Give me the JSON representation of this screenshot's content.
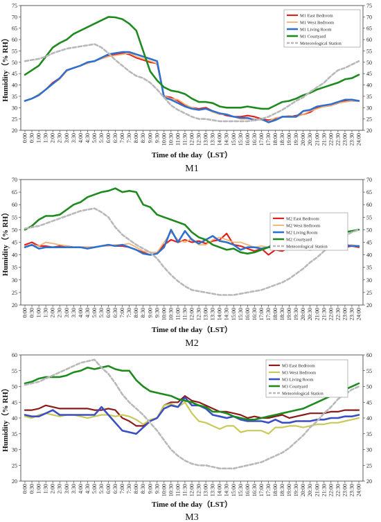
{
  "chart_data": [
    {
      "type": "line",
      "title": "M1",
      "xlabel": "Time of the day（LST）",
      "ylabel": "Humidity（% RH）",
      "ylim": [
        20,
        75
      ],
      "yticks": [
        20,
        25,
        30,
        35,
        40,
        45,
        50,
        55,
        60,
        65,
        70,
        75
      ],
      "x": [
        "0:00",
        "0:30",
        "1:00",
        "1:30",
        "2:00",
        "2:30",
        "3:00",
        "3:30",
        "4:00",
        "4:30",
        "5:00",
        "5:30",
        "6:00",
        "6:30",
        "7:00",
        "7:30",
        "8:00",
        "8:30",
        "9:00",
        "9:30",
        "10:00",
        "10:30",
        "11:00",
        "11:30",
        "12:00",
        "12:30",
        "13:00",
        "13:30",
        "14:00",
        "14:30",
        "15:00",
        "15:30",
        "16:00",
        "16:30",
        "17:00",
        "17:30",
        "18:00",
        "18:30",
        "19:00",
        "19:30",
        "20:00",
        "20:30",
        "21:00",
        "21:30",
        "22:00",
        "22:30",
        "23:00",
        "23:30",
        "24:00"
      ],
      "legend_position": "top-right",
      "series": [
        {
          "name": "M1 East Bedroom",
          "color": "#e0201b",
          "width": 2.2,
          "dash": "",
          "values": [
            33,
            34,
            35.5,
            38,
            41,
            43,
            46.5,
            47.5,
            48.5,
            50,
            50.5,
            52,
            53,
            53.5,
            54,
            53.5,
            52,
            51,
            50,
            49.5,
            35,
            34.5,
            33,
            31,
            30,
            29.5,
            30,
            28.5,
            27.5,
            26.5,
            26,
            26,
            26.5,
            26,
            25,
            24.5,
            25,
            26,
            26,
            26.5,
            27,
            28,
            30,
            30.5,
            31,
            32,
            33,
            33,
            33
          ]
        },
        {
          "name": "M1 West Bedroom",
          "color": "#f2b272",
          "width": 1.8,
          "dash": "",
          "values": [
            33,
            34,
            36,
            38,
            40.5,
            42.5,
            46,
            47.5,
            48.5,
            49.5,
            50.5,
            51.5,
            52.5,
            53,
            53.5,
            54,
            52.5,
            51.5,
            50.5,
            49.5,
            35,
            34,
            33.5,
            31.5,
            30,
            29,
            29.5,
            28,
            27,
            27,
            26,
            25,
            25,
            25,
            24.5,
            24,
            25.5,
            26,
            26.5,
            26,
            27,
            28.5,
            29.5,
            30.5,
            31,
            32,
            32.5,
            33,
            33
          ]
        },
        {
          "name": "M1 Living Room",
          "color": "#2f6fce",
          "width": 2.6,
          "dash": "",
          "values": [
            33,
            34,
            35.5,
            38,
            40.5,
            43,
            46.5,
            47.5,
            48.5,
            50,
            50.5,
            52,
            53.5,
            54,
            54.5,
            54.5,
            53.5,
            52.5,
            51.5,
            50.5,
            34.5,
            33.5,
            32,
            30.5,
            29.5,
            29,
            29.5,
            28.5,
            27.5,
            27,
            26,
            25.5,
            25.5,
            24.5,
            25,
            23.5,
            24.5,
            26,
            26,
            26,
            28.5,
            29,
            30.5,
            31,
            31.5,
            32.5,
            33.5,
            33.5,
            33
          ]
        },
        {
          "name": "M1 Courtyard",
          "color": "#1d8a1d",
          "width": 2.6,
          "dash": "",
          "values": [
            44.5,
            46.5,
            48.5,
            52.5,
            56.5,
            58.5,
            60,
            62.5,
            64,
            65.5,
            67,
            68.5,
            70,
            69.8,
            69,
            67,
            64,
            55,
            46,
            42,
            39,
            37.5,
            37,
            36,
            34,
            32.5,
            32.5,
            32,
            30.5,
            30,
            30,
            30,
            30.5,
            30,
            29.5,
            29.5,
            31,
            32.5,
            33,
            34,
            35.5,
            36.5,
            38,
            39,
            40,
            41,
            42.5,
            43,
            44.5
          ]
        },
        {
          "name": "Meteorological Station",
          "color": "#b8b8b8",
          "width": 2.6,
          "dash": "5,3",
          "values": [
            50.5,
            51,
            51.5,
            52.5,
            54,
            55,
            56,
            56.5,
            57,
            57.5,
            58,
            56.5,
            54,
            51,
            48.5,
            46,
            44,
            43,
            41,
            38,
            34.5,
            31,
            29,
            27.5,
            26,
            25,
            25,
            24.5,
            24,
            24,
            24,
            24,
            24,
            24.5,
            25,
            26,
            27.5,
            29,
            31,
            33,
            34.5,
            37,
            39,
            41,
            44,
            46.5,
            47.5,
            49,
            50.5
          ]
        }
      ]
    },
    {
      "type": "line",
      "title": "M2",
      "xlabel": "Time of the day（LST）",
      "ylabel": "Humidity（% RH）",
      "ylim": [
        20,
        70
      ],
      "yticks": [
        20,
        25,
        30,
        35,
        40,
        45,
        50,
        55,
        60,
        65,
        70
      ],
      "x": [
        "0:00",
        "0:30",
        "1:00",
        "1:30",
        "2:00",
        "2:30",
        "3:00",
        "3:30",
        "4:00",
        "4:30",
        "5:00",
        "5:30",
        "6:00",
        "6:30",
        "7:00",
        "7:30",
        "8:00",
        "8:30",
        "9:00",
        "9:30",
        "10:00",
        "10:30",
        "11:00",
        "11:30",
        "12:00",
        "12:30",
        "13:00",
        "13:30",
        "14:00",
        "14:30",
        "15:00",
        "15:30",
        "16:00",
        "16:30",
        "17:00",
        "17:30",
        "18:00",
        "18:30",
        "19:00",
        "19:30",
        "20:00",
        "20:30",
        "21:00",
        "21:30",
        "22:00",
        "22:30",
        "23:00",
        "23:30",
        "24:00"
      ],
      "legend_position": "top-right",
      "series": [
        {
          "name": "M2 East Bedroom",
          "color": "#e0201b",
          "width": 2.2,
          "dash": "",
          "values": [
            44,
            45,
            43.5,
            43.5,
            43,
            43.5,
            43.5,
            43,
            43,
            43,
            43,
            43.5,
            44,
            43.5,
            43.5,
            43,
            42,
            41,
            40,
            40.5,
            44,
            46,
            45,
            46,
            45,
            45.5,
            44.5,
            45.5,
            46,
            48.5,
            44,
            43.5,
            42.5,
            41.5,
            42.5,
            40,
            42,
            41.5,
            43,
            43,
            42.5,
            42,
            42.5,
            45.5,
            42.5,
            43,
            43,
            43.5,
            43
          ]
        },
        {
          "name": "M2 West Bedroom",
          "color": "#f2b272",
          "width": 1.8,
          "dash": "",
          "values": [
            43.5,
            44,
            43.5,
            45,
            44.5,
            44,
            43.5,
            43,
            43,
            43,
            43,
            43.5,
            43.5,
            44,
            44,
            44.5,
            43,
            41.5,
            41,
            41,
            45,
            49,
            46,
            45,
            46.5,
            44,
            44,
            46,
            47,
            46,
            45,
            45,
            44,
            43,
            43.5,
            43,
            44,
            42.5,
            43,
            43,
            44,
            44,
            44,
            43,
            43.5,
            43.5,
            43.5,
            44,
            43.5
          ]
        },
        {
          "name": "M2 Living Room",
          "color": "#2f6fce",
          "width": 2.6,
          "dash": "",
          "values": [
            43,
            44,
            42.5,
            43,
            43,
            43,
            43,
            43,
            43,
            42.5,
            43,
            43.5,
            44,
            43.5,
            44,
            43,
            42,
            40.5,
            40,
            40.5,
            43,
            50,
            45,
            49.5,
            46,
            44.5,
            46,
            47.5,
            45.5,
            45,
            44,
            42,
            43,
            43,
            42.5,
            43,
            45,
            43,
            43.5,
            44,
            46,
            45,
            44,
            44.5,
            43,
            44,
            44,
            43.5,
            43.5
          ]
        },
        {
          "name": "M2 Courtyard",
          "color": "#1d8a1d",
          "width": 2.6,
          "dash": "",
          "values": [
            50,
            51.5,
            54,
            55.5,
            55.5,
            56,
            58,
            60,
            61,
            63,
            64,
            65,
            65.5,
            66.5,
            65,
            65.5,
            65,
            60,
            59,
            56,
            55,
            54,
            53,
            52,
            49,
            47,
            46,
            44,
            43,
            42,
            42.5,
            41,
            40.5,
            41,
            42,
            43,
            43,
            43.5,
            44,
            45,
            46,
            46.5,
            47.5,
            47.5,
            48,
            48.5,
            49,
            49.5,
            50
          ]
        },
        {
          "name": "Meteorological Station",
          "color": "#b8b8b8",
          "width": 2.6,
          "dash": "5,3",
          "values": [
            50.5,
            51,
            51.5,
            52.5,
            53.5,
            54.5,
            55.5,
            56.5,
            57.5,
            58,
            58.5,
            57,
            55,
            51,
            48,
            46,
            44,
            42.5,
            41,
            38.5,
            35,
            32,
            29.5,
            27.5,
            26,
            25.5,
            25,
            24.5,
            24,
            24,
            24,
            24.5,
            25,
            25.5,
            26,
            27,
            28,
            29,
            30.5,
            32.5,
            34.5,
            37,
            39,
            41.5,
            43.5,
            46,
            47.5,
            49,
            50
          ]
        }
      ]
    },
    {
      "type": "line",
      "title": "M3",
      "xlabel": "Time of the day（LST）",
      "ylabel": "Humidity（% RH）",
      "ylim": [
        20,
        60
      ],
      "yticks": [
        20,
        25,
        30,
        35,
        40,
        45,
        50,
        55,
        60
      ],
      "x": [
        "0:00",
        "0:30",
        "1:00",
        "1:30",
        "2:00",
        "2:30",
        "3:00",
        "3:30",
        "4:00",
        "4:30",
        "5:00",
        "5:30",
        "6:00",
        "6:30",
        "7:00",
        "7:30",
        "8:00",
        "8:30",
        "9:00",
        "9:30",
        "10:00",
        "10:30",
        "11:00",
        "11:30",
        "12:00",
        "12:30",
        "13:00",
        "13:30",
        "14:00",
        "14:30",
        "15:00",
        "15:30",
        "16:00",
        "16:30",
        "17:00",
        "17:30",
        "18:00",
        "18:30",
        "19:00",
        "19:30",
        "20:00",
        "20:30",
        "21:00",
        "21:30",
        "22:00",
        "22:30",
        "23:00",
        "23:30",
        "24:00"
      ],
      "legend_position": "top-right",
      "series": [
        {
          "name": "M3 East Bedroom",
          "color": "#8b1a1a",
          "width": 2.2,
          "dash": "",
          "values": [
            42.5,
            42.5,
            43,
            44,
            43.5,
            43,
            43,
            43,
            43,
            43,
            42.5,
            42.5,
            43,
            42.5,
            40,
            39,
            37.5,
            37.5,
            39,
            40,
            44,
            45,
            45,
            47,
            45.5,
            45,
            44,
            43,
            42,
            42,
            41.5,
            41,
            40,
            40.5,
            40,
            40,
            40.5,
            41,
            40,
            40.5,
            41,
            41.5,
            41.5,
            41.5,
            42,
            42,
            42.5,
            42.5,
            42.5
          ]
        },
        {
          "name": "M3 West Bedroom",
          "color": "#c9c95a",
          "width": 2.2,
          "dash": "",
          "values": [
            40.5,
            40,
            41,
            41.5,
            41,
            40.5,
            41,
            41,
            40.5,
            40,
            40.5,
            41,
            41,
            40.5,
            41,
            40.5,
            39.5,
            38,
            39.5,
            40,
            44,
            44.5,
            43.5,
            45,
            41.5,
            39,
            38.5,
            37.5,
            36.5,
            37.5,
            37.5,
            35.5,
            36,
            36,
            36,
            35,
            37,
            37,
            37.5,
            37.5,
            37,
            37.5,
            38,
            38,
            38.5,
            38.5,
            39,
            39.5,
            40
          ]
        },
        {
          "name": "M3 Living Room",
          "color": "#3b4fc4",
          "width": 2.6,
          "dash": "",
          "values": [
            41,
            40.5,
            40.5,
            41.5,
            42.5,
            41,
            41,
            41,
            41,
            41,
            41,
            43.5,
            41,
            38.5,
            36,
            35.5,
            35,
            37,
            39,
            40,
            43,
            44,
            43.5,
            46.5,
            44,
            44,
            43,
            41,
            40.5,
            40,
            40.5,
            39.5,
            39,
            39,
            39,
            38.5,
            39.5,
            38.5,
            38.5,
            39,
            39,
            39,
            39.5,
            39.5,
            40,
            40,
            40.5,
            40.5,
            41
          ]
        },
        {
          "name": "M3 Courtyard",
          "color": "#1d8a1d",
          "width": 2.6,
          "dash": "",
          "values": [
            51,
            51.5,
            52.5,
            53,
            53,
            53,
            53.5,
            54.5,
            55,
            56,
            55.5,
            56,
            56.5,
            55.5,
            55,
            55,
            52,
            50,
            48.5,
            48,
            47.5,
            47,
            46,
            45.5,
            45,
            44,
            43.5,
            42,
            42,
            41.5,
            40.5,
            40,
            39.5,
            39.5,
            40,
            40.5,
            41,
            41.5,
            42,
            42.5,
            43,
            44,
            45,
            46,
            47,
            48,
            49,
            50,
            51
          ]
        },
        {
          "name": "Meteorological Station",
          "color": "#b8b8b8",
          "width": 2.6,
          "dash": "5,3",
          "values": [
            50.5,
            51,
            51.5,
            52.5,
            53.5,
            54.5,
            55.5,
            56.5,
            57.5,
            58,
            58.5,
            56,
            54,
            51,
            47.5,
            45,
            43,
            41,
            38.5,
            36,
            33,
            30,
            28,
            26.5,
            25.5,
            25,
            25,
            24.5,
            24,
            24,
            24,
            24.5,
            25,
            25.5,
            26,
            27,
            28,
            29,
            30.5,
            32.5,
            34.5,
            37,
            39,
            41.5,
            43.5,
            46,
            47.5,
            49,
            50
          ]
        }
      ]
    }
  ]
}
